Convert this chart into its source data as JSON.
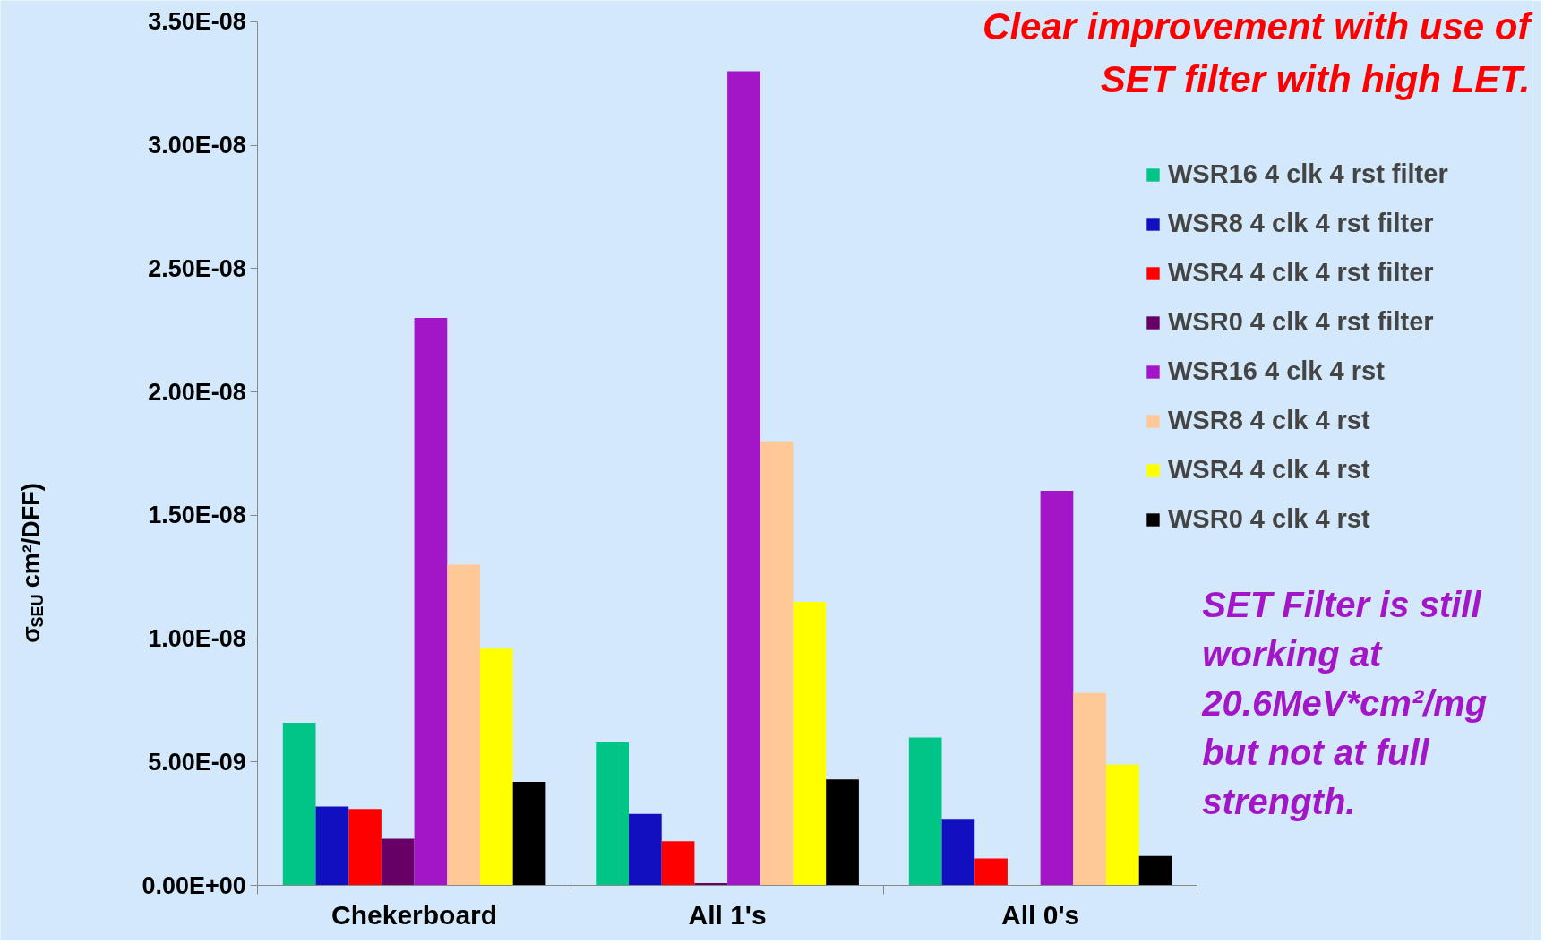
{
  "chart_data": {
    "type": "bar",
    "categories": [
      "Chekerboard",
      "All 1's",
      "All 0's"
    ],
    "ylabel": "σ$_{SEU}$ cm²/DFF)",
    "ylim": [
      0,
      3.5e-08
    ],
    "yticks": [
      {
        "value": 0,
        "label": "0.00E+00"
      },
      {
        "value": 5e-09,
        "label": "5.00E-09"
      },
      {
        "value": 1e-08,
        "label": "1.00E-08"
      },
      {
        "value": 1.5e-08,
        "label": "1.50E-08"
      },
      {
        "value": 2e-08,
        "label": "2.00E-08"
      },
      {
        "value": 2.5e-08,
        "label": "2.50E-08"
      },
      {
        "value": 3e-08,
        "label": "3.00E-08"
      },
      {
        "value": 3.5e-08,
        "label": "3.50E-08"
      }
    ],
    "grid": false,
    "legend": "right",
    "series": [
      {
        "name": "WSR16 4 clk 4 rst filter",
        "color": "#00c587",
        "values": [
          6.6e-09,
          5.8e-09,
          6e-09
        ]
      },
      {
        "name": "WSR8 4 clk 4 rst filter",
        "color": "#1010c0",
        "values": [
          3.2e-09,
          2.9e-09,
          2.7e-09
        ]
      },
      {
        "name": "WSR4 4 clk 4 rst filter",
        "color": "#ff0000",
        "values": [
          3.1e-09,
          1.8e-09,
          1.1e-09
        ]
      },
      {
        "name": "WSR0 4 clk 4 rst filter",
        "color": "#660066",
        "values": [
          1.9e-09,
          1e-10,
          null
        ]
      },
      {
        "name": "WSR16 4 clk 4 rst",
        "color": "#a216c8",
        "values": [
          2.3e-08,
          3.3e-08,
          1.6e-08
        ]
      },
      {
        "name": "WSR8 4 clk 4 rst",
        "color": "#ffc896",
        "values": [
          1.3e-08,
          1.8e-08,
          7.8e-09
        ]
      },
      {
        "name": "WSR4 4 clk 4 rst",
        "color": "#ffff00",
        "values": [
          9.6e-09,
          1.15e-08,
          4.9e-09
        ]
      },
      {
        "name": "WSR0 4 clk 4 rst",
        "color": "#000000",
        "values": [
          4.2e-09,
          4.3e-09,
          1.2e-09
        ]
      }
    ],
    "annotations": [
      "Clear improvement with use of\nSET filter with high LET.",
      "SET Filter is still\nworking at\n20.6MeV*cm²/mg\nbut not at full\nstrength."
    ]
  }
}
